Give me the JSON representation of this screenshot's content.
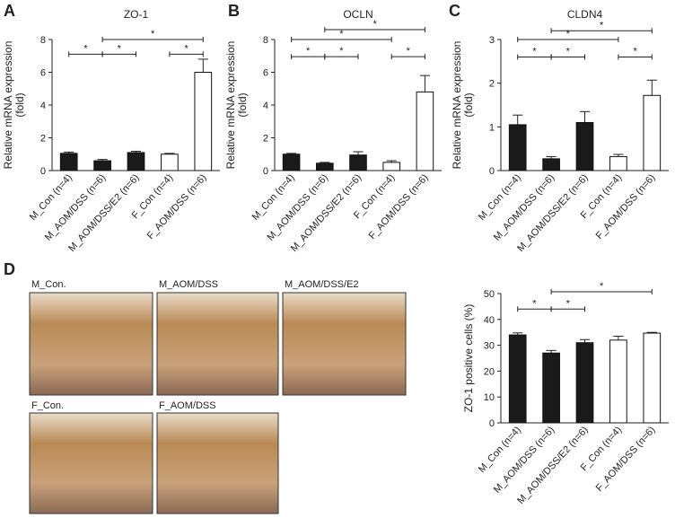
{
  "panel_labels": [
    "A",
    "B",
    "C",
    "D"
  ],
  "images": [
    "M_Con.",
    "M_AOM/DSS",
    "M_AOM/DSS/E2",
    "F_Con.",
    "F_AOM/DSS"
  ],
  "chart_data": [
    {
      "type": "bar",
      "title": "ZO-1",
      "ylabel": [
        "Relative mRNA expression",
        "(fold)"
      ],
      "categories": [
        "M_Con (n=4)",
        "M_AOM/DSS (n=6)",
        "M_AOM/DSS/E2 (n=6)",
        "F_Con (n=4)",
        "F_AOM/DSS (n=6)"
      ],
      "values": [
        1.05,
        0.6,
        1.1,
        1.0,
        6.0
      ],
      "errors": [
        0.08,
        0.08,
        0.08,
        0.05,
        0.8
      ],
      "colors": [
        "#1a1a1a",
        "#1a1a1a",
        "#1a1a1a",
        "#ffffff",
        "#ffffff"
      ],
      "ylim": [
        0,
        8
      ],
      "yticks": [
        0,
        2,
        4,
        6,
        8
      ],
      "significance": [
        {
          "label": "*",
          "between": [
            "M_Con (n=4)",
            "M_AOM/DSS (n=6)"
          ],
          "y": 7.1
        },
        {
          "label": "*",
          "between": [
            "M_AOM/DSS (n=6)",
            "M_AOM/DSS/E2 (n=6)"
          ],
          "y": 7.1
        },
        {
          "label": "*",
          "between": [
            "M_AOM/DSS (n=6)",
            "F_AOM/DSS (n=6)"
          ],
          "y": 8.0
        },
        {
          "label": "*",
          "between": [
            "F_Con (n=4)",
            "F_AOM/DSS (n=6)"
          ],
          "y": 7.1
        }
      ]
    },
    {
      "type": "bar",
      "title": "OCLN",
      "ylabel": [
        "Relative mRNA expression",
        "(fold)"
      ],
      "categories": [
        "M_Con (n=4)",
        "M_AOM/DSS (n=6)",
        "M_AOM/DSS/E2 (n=6)",
        "F_Con (n=4)",
        "F_AOM/DSS (n=6)"
      ],
      "values": [
        1.0,
        0.45,
        0.95,
        0.5,
        4.8
      ],
      "errors": [
        0.05,
        0.05,
        0.2,
        0.1,
        1.0
      ],
      "colors": [
        "#1a1a1a",
        "#1a1a1a",
        "#1a1a1a",
        "#ffffff",
        "#ffffff"
      ],
      "ylim": [
        0,
        8
      ],
      "yticks": [
        0,
        2,
        4,
        6,
        8
      ],
      "significance": [
        {
          "label": "*",
          "between": [
            "M_Con (n=4)",
            "M_AOM/DSS (n=6)"
          ],
          "y": 6.95
        },
        {
          "label": "*",
          "between": [
            "M_AOM/DSS (n=6)",
            "M_AOM/DSS/E2 (n=6)"
          ],
          "y": 6.95
        },
        {
          "label": "*",
          "between": [
            "M_Con (n=4)",
            "F_Con (n=4)"
          ],
          "y": 8.0
        },
        {
          "label": "*",
          "between": [
            "M_AOM/DSS (n=6)",
            "F_AOM/DSS (n=6)"
          ],
          "y": 8.6
        },
        {
          "label": "*",
          "between": [
            "F_Con (n=4)",
            "F_AOM/DSS (n=6)"
          ],
          "y": 6.95
        }
      ]
    },
    {
      "type": "bar",
      "title": "CLDN4",
      "ylabel": [
        "Relative mRNA expression",
        "(fold)"
      ],
      "categories": [
        "M_Con (n=4)",
        "M_AOM/DSS (n=6)",
        "M_AOM/DSS/E2 (n=6)",
        "F_Con (n=4)",
        "F_AOM/DSS (n=6)"
      ],
      "values": [
        1.05,
        0.27,
        1.1,
        0.32,
        1.72
      ],
      "errors": [
        0.22,
        0.05,
        0.25,
        0.05,
        0.35
      ],
      "colors": [
        "#1a1a1a",
        "#1a1a1a",
        "#1a1a1a",
        "#ffffff",
        "#ffffff"
      ],
      "ylim": [
        0,
        3
      ],
      "yticks": [
        0,
        1,
        2,
        3
      ],
      "significance": [
        {
          "label": "*",
          "between": [
            "M_Con (n=4)",
            "M_AOM/DSS (n=6)"
          ],
          "y": 2.6
        },
        {
          "label": "*",
          "between": [
            "M_AOM/DSS (n=6)",
            "M_AOM/DSS/E2 (n=6)"
          ],
          "y": 2.6
        },
        {
          "label": "*",
          "between": [
            "M_Con (n=4)",
            "F_Con (n=4)"
          ],
          "y": 3.0
        },
        {
          "label": "*",
          "between": [
            "M_AOM/DSS (n=6)",
            "F_AOM/DSS (n=6)"
          ],
          "y": 3.2
        },
        {
          "label": "*",
          "between": [
            "F_Con (n=4)",
            "F_AOM/DSS (n=6)"
          ],
          "y": 2.6
        }
      ]
    },
    {
      "type": "bar",
      "ylabel": [
        "ZO-1 positive cells (%)"
      ],
      "categories": [
        "M_Con (n=4)",
        "M_AOM/DSS (n=6)",
        "M_AOM/DSS/E2 (n=6)",
        "F_Con (n=4)",
        "F_AOM/DSS (n=6)"
      ],
      "values": [
        34,
        27,
        31,
        32,
        34.7
      ],
      "errors": [
        0.8,
        1.0,
        1.2,
        1.5,
        0.3
      ],
      "colors": [
        "#1a1a1a",
        "#1a1a1a",
        "#1a1a1a",
        "#ffffff",
        "#ffffff"
      ],
      "ylim": [
        0,
        50
      ],
      "yticks": [
        0,
        10,
        20,
        30,
        40,
        50
      ],
      "significance": [
        {
          "label": "*",
          "between": [
            "M_Con (n=4)",
            "M_AOM/DSS (n=6)"
          ],
          "y": 44
        },
        {
          "label": "*",
          "between": [
            "M_AOM/DSS (n=6)",
            "M_AOM/DSS/E2 (n=6)"
          ],
          "y": 44
        },
        {
          "label": "*",
          "between": [
            "M_AOM/DSS (n=6)",
            "F_AOM/DSS (n=6)"
          ],
          "y": 50.7
        }
      ]
    }
  ]
}
